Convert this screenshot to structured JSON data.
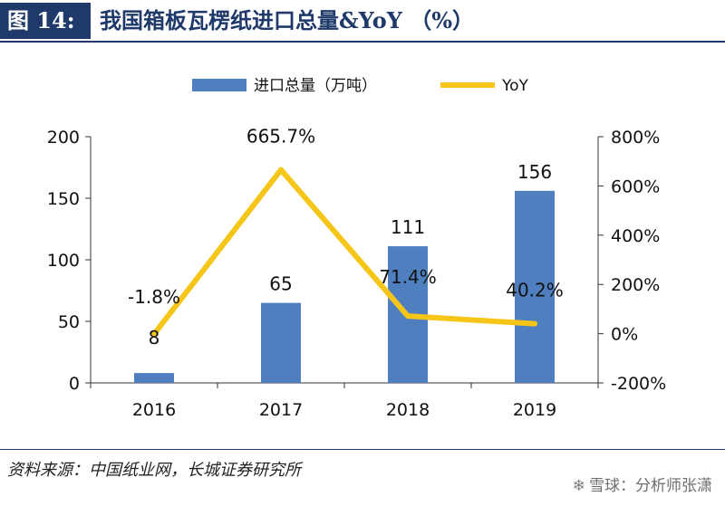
{
  "header": {
    "figure_label": "图 14:",
    "title": "我国箱板瓦楞纸进口总量&YoY （%）"
  },
  "footer": {
    "source": "资料来源：中国纸业网，长城证券研究所",
    "watermark": "雪球：分析师张潇",
    "watermark_icon": "snowball-logo-icon"
  },
  "colors": {
    "bar": "#4f7fbf",
    "line": "#f5c518",
    "title": "#1f3a6a"
  },
  "chart_data": {
    "type": "bar",
    "categories": [
      "2016",
      "2017",
      "2018",
      "2019"
    ],
    "series": [
      {
        "name": "进口总量（万吨）",
        "type": "bar",
        "axis": "left",
        "values": [
          8,
          65,
          111,
          156
        ],
        "labels": [
          "8",
          "65",
          "111",
          "156"
        ]
      },
      {
        "name": "YoY",
        "type": "line",
        "axis": "right",
        "values": [
          -1.8,
          665.7,
          71.4,
          40.2
        ],
        "labels": [
          "-1.8%",
          "665.7%",
          "71.4%",
          "40.2%"
        ]
      }
    ],
    "y_left": {
      "min": 0,
      "max": 200,
      "ticks": [
        "0",
        "50",
        "100",
        "150",
        "200"
      ],
      "tick_values": [
        0,
        50,
        100,
        150,
        200
      ]
    },
    "y_right": {
      "min": -200,
      "max": 800,
      "ticks": [
        "-200%",
        "0%",
        "200%",
        "400%",
        "600%",
        "800%"
      ],
      "tick_values": [
        -200,
        0,
        200,
        400,
        600,
        800
      ]
    },
    "legend_position": "top",
    "grid": false
  }
}
